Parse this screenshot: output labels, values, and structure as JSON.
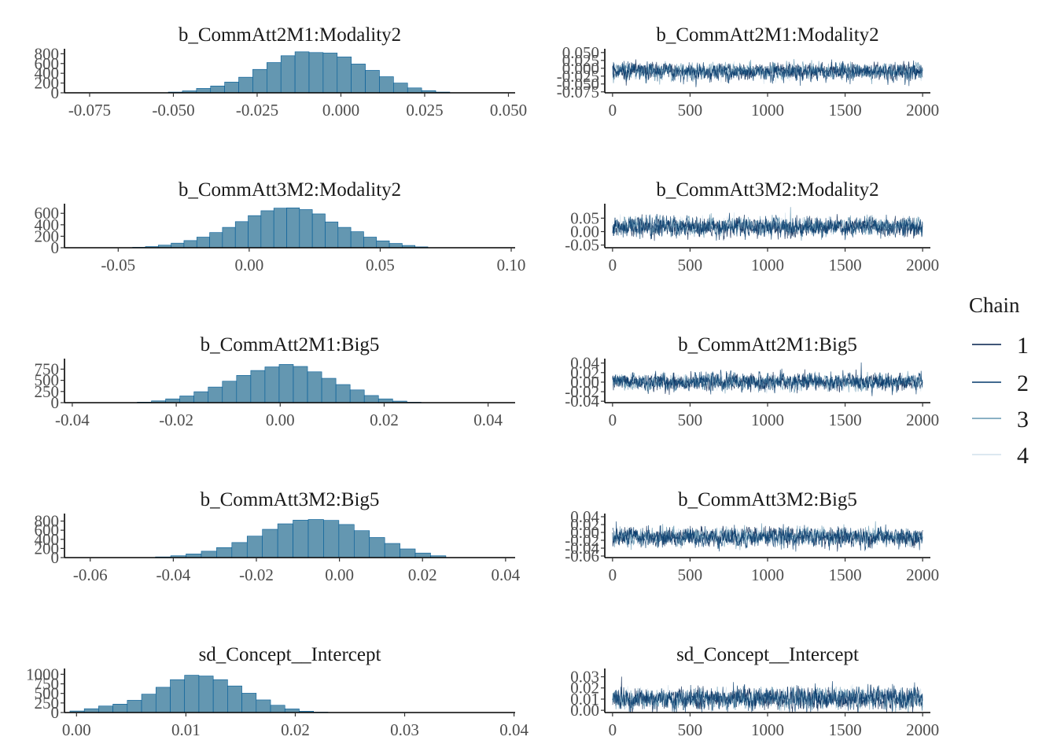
{
  "colors": {
    "hist_fill": "#6497b1",
    "hist_stroke": "#005b96",
    "chain_colors": [
      "#011f4b",
      "#03396c",
      "#6497b1",
      "#d1e1ec"
    ]
  },
  "legend": {
    "title": "Chain",
    "items": [
      "1",
      "2",
      "3",
      "4"
    ]
  },
  "chart_data": [
    {
      "type": "bar",
      "title": "b_CommAtt2M1:Modality2",
      "xticks": [
        "-0.075",
        "-0.050",
        "-0.025",
        "0.000",
        "0.025",
        "0.050"
      ],
      "xtick_values": [
        -0.075,
        -0.05,
        -0.025,
        0.0,
        0.025,
        0.05
      ],
      "xlim": [
        -0.0825,
        0.052
      ],
      "yticks": [
        "0",
        "200",
        "400",
        "600",
        "800"
      ],
      "ytick_values": [
        0,
        200,
        400,
        600,
        800
      ],
      "ylim": [
        0,
        870
      ],
      "bin_width": 0.0042,
      "bins_start": [
        -0.0515,
        -0.0473,
        -0.0431,
        -0.0389,
        -0.0347,
        -0.0305,
        -0.0263,
        -0.0221,
        -0.0179,
        -0.0137,
        -0.0095,
        -0.0053,
        -0.0011,
        0.0031,
        0.0073,
        0.0115,
        0.0157,
        0.0199,
        0.0241,
        0.0283
      ],
      "counts": [
        15,
        40,
        90,
        140,
        220,
        320,
        480,
        620,
        760,
        840,
        825,
        815,
        735,
        590,
        460,
        330,
        200,
        100,
        45,
        15
      ]
    },
    {
      "type": "line",
      "title": "b_CommAtt2M1:Modality2",
      "xticks": [
        "0",
        "500",
        "1000",
        "1500",
        "2000"
      ],
      "xtick_values": [
        0,
        500,
        1000,
        1500,
        2000
      ],
      "xlim": [
        -50,
        2050
      ],
      "yticks": [
        "-0.075",
        "-0.050",
        "-0.025",
        "0.000",
        "0.025",
        "0.050"
      ],
      "ytick_values": [
        -0.075,
        -0.05,
        -0.025,
        0.0,
        0.025,
        0.05
      ],
      "ylim": [
        -0.078,
        0.057
      ],
      "iterations": 2000,
      "chains": [
        {
          "name": "1",
          "mean": -0.009,
          "sd": 0.012
        },
        {
          "name": "2",
          "mean": -0.012,
          "sd": 0.014
        },
        {
          "name": "3",
          "mean": -0.008,
          "sd": 0.012
        },
        {
          "name": "4",
          "mean": -0.011,
          "sd": 0.011
        }
      ]
    },
    {
      "type": "bar",
      "title": "b_CommAtt3M2:Modality2",
      "xticks": [
        "-0.05",
        "0.00",
        "0.05",
        "0.10"
      ],
      "xtick_values": [
        -0.05,
        0.0,
        0.05,
        0.1
      ],
      "xlim": [
        -0.0705,
        0.1015
      ],
      "yticks": [
        "0",
        "200",
        "400",
        "600"
      ],
      "ytick_values": [
        0,
        200,
        400,
        600
      ],
      "ylim": [
        0,
        740
      ],
      "bin_width": 0.0049,
      "bins_start": [
        -0.0445,
        -0.0396,
        -0.0347,
        -0.0298,
        -0.0249,
        -0.02,
        -0.0151,
        -0.0102,
        -0.0053,
        -0.0004,
        0.0045,
        0.0094,
        0.0143,
        0.0192,
        0.0241,
        0.029,
        0.0339,
        0.0388,
        0.0437,
        0.0486,
        0.0535,
        0.0584,
        0.0633
      ],
      "counts": [
        8,
        20,
        45,
        80,
        125,
        185,
        265,
        355,
        455,
        560,
        645,
        690,
        695,
        665,
        590,
        450,
        355,
        280,
        185,
        120,
        75,
        40,
        15
      ]
    },
    {
      "type": "line",
      "title": "b_CommAtt3M2:Modality2",
      "xticks": [
        "0",
        "500",
        "1000",
        "1500",
        "2000"
      ],
      "xtick_values": [
        0,
        500,
        1000,
        1500,
        2000
      ],
      "xlim": [
        -50,
        2050
      ],
      "yticks": [
        "-0.05",
        "0.00",
        "0.05"
      ],
      "ytick_values": [
        -0.05,
        0.0,
        0.05
      ],
      "ylim": [
        -0.06,
        0.098
      ],
      "iterations": 2000,
      "chains": [
        {
          "name": "1",
          "mean": 0.016,
          "sd": 0.017
        },
        {
          "name": "2",
          "mean": 0.018,
          "sd": 0.018
        },
        {
          "name": "3",
          "mean": 0.02,
          "sd": 0.016
        },
        {
          "name": "4",
          "mean": 0.019,
          "sd": 0.015
        }
      ]
    },
    {
      "type": "bar",
      "title": "b_CommAtt2M1:Big5",
      "xticks": [
        "-0.04",
        "-0.02",
        "0.00",
        "0.02",
        "0.04"
      ],
      "xtick_values": [
        -0.04,
        -0.02,
        0.0,
        0.02,
        0.04
      ],
      "xlim": [
        -0.0415,
        0.0452
      ],
      "yticks": [
        "0",
        "250",
        "500",
        "750"
      ],
      "ytick_values": [
        0,
        250,
        500,
        750
      ],
      "ylim": [
        0,
        950
      ],
      "bin_width": 0.00273,
      "bins_start": [
        -0.0275,
        -0.02477,
        -0.02204,
        -0.01931,
        -0.01658,
        -0.01385,
        -0.01112,
        -0.00839,
        -0.00566,
        -0.00293,
        -0.0002,
        0.00253,
        0.00526,
        0.00799,
        0.01072,
        0.01345,
        0.01618,
        0.01891,
        0.02164,
        0.02437
      ],
      "counts": [
        12,
        40,
        85,
        150,
        245,
        350,
        480,
        610,
        720,
        800,
        855,
        810,
        690,
        545,
        405,
        285,
        160,
        85,
        35,
        10
      ]
    },
    {
      "type": "line",
      "title": "b_CommAtt2M1:Big5",
      "xticks": [
        "0",
        "500",
        "1000",
        "1500",
        "2000"
      ],
      "xtick_values": [
        0,
        500,
        1000,
        1500,
        2000
      ],
      "xlim": [
        -50,
        2050
      ],
      "yticks": [
        "-0.04",
        "-0.02",
        "0.00",
        "0.02",
        "0.04"
      ],
      "ytick_values": [
        -0.04,
        -0.02,
        0.0,
        0.02,
        0.04
      ],
      "ylim": [
        -0.043,
        0.046
      ],
      "iterations": 2000,
      "chains": [
        {
          "name": "1",
          "mean": -0.001,
          "sd": 0.008
        },
        {
          "name": "2",
          "mean": 0.001,
          "sd": 0.009
        },
        {
          "name": "3",
          "mean": 0.0,
          "sd": 0.008
        },
        {
          "name": "4",
          "mean": 0.0,
          "sd": 0.007
        }
      ]
    },
    {
      "type": "bar",
      "title": "b_CommAtt3M2:Big5",
      "xticks": [
        "-0.06",
        "-0.04",
        "-0.02",
        "0.00",
        "0.02",
        "0.04"
      ],
      "xtick_values": [
        -0.06,
        -0.04,
        -0.02,
        0.0,
        0.02,
        0.04
      ],
      "xlim": [
        -0.0662,
        0.0423
      ],
      "yticks": [
        "0",
        "200",
        "400",
        "600",
        "800"
      ],
      "ytick_values": [
        0,
        200,
        400,
        600,
        800
      ],
      "ylim": [
        0,
        930
      ],
      "bin_width": 0.00368,
      "bins_start": [
        -0.0443,
        -0.04062,
        -0.03694,
        -0.03326,
        -0.02958,
        -0.0259,
        -0.02222,
        -0.01854,
        -0.01486,
        -0.01118,
        -0.0075,
        -0.00382,
        -0.00014,
        0.00354,
        0.00722,
        0.0109,
        0.01458,
        0.01826,
        0.02194
      ],
      "counts": [
        15,
        40,
        80,
        140,
        220,
        330,
        470,
        620,
        740,
        820,
        835,
        815,
        725,
        590,
        440,
        310,
        190,
        100,
        40
      ]
    },
    {
      "type": "line",
      "title": "b_CommAtt3M2:Big5",
      "xticks": [
        "0",
        "500",
        "1000",
        "1500",
        "2000"
      ],
      "xtick_values": [
        0,
        500,
        1000,
        1500,
        2000
      ],
      "xlim": [
        -50,
        2050
      ],
      "yticks": [
        "-0.06",
        "-0.04",
        "-0.02",
        "0.00",
        "0.02",
        "0.04"
      ],
      "ytick_values": [
        -0.06,
        -0.04,
        -0.02,
        0.0,
        0.02,
        0.04
      ],
      "ylim": [
        -0.064,
        0.044
      ],
      "iterations": 2000,
      "chains": [
        {
          "name": "1",
          "mean": -0.011,
          "sd": 0.011
        },
        {
          "name": "2",
          "mean": -0.013,
          "sd": 0.012
        },
        {
          "name": "3",
          "mean": -0.01,
          "sd": 0.011
        },
        {
          "name": "4",
          "mean": -0.012,
          "sd": 0.01
        }
      ]
    },
    {
      "type": "bar",
      "title": "sd_Concept__Intercept",
      "xticks": [
        "0.00",
        "0.01",
        "0.02",
        "0.03",
        "0.04"
      ],
      "xtick_values": [
        0.0,
        0.01,
        0.02,
        0.03,
        0.04
      ],
      "xlim": [
        -0.0011,
        0.0401
      ],
      "yticks": [
        "0",
        "250",
        "500",
        "750",
        "1000"
      ],
      "ytick_values": [
        0,
        250,
        500,
        750,
        1000
      ],
      "ylim": [
        0,
        1110
      ],
      "bin_width": 0.00131,
      "bins_start": [
        -0.0006,
        0.00071,
        0.00202,
        0.00333,
        0.00464,
        0.00595,
        0.00726,
        0.00857,
        0.00988,
        0.01119,
        0.0125,
        0.01381,
        0.01512,
        0.01643,
        0.01774,
        0.01905,
        0.02036,
        0.02167
      ],
      "counts": [
        40,
        100,
        170,
        220,
        320,
        480,
        660,
        860,
        975,
        955,
        860,
        695,
        505,
        330,
        190,
        95,
        35,
        10
      ]
    },
    {
      "type": "line",
      "title": "sd_Concept__Intercept",
      "xticks": [
        "0",
        "500",
        "1000",
        "1500",
        "2000"
      ],
      "xtick_values": [
        0,
        500,
        1000,
        1500,
        2000
      ],
      "xlim": [
        -50,
        2050
      ],
      "yticks": [
        "0.00",
        "0.01",
        "0.02",
        "0.03"
      ],
      "ytick_values": [
        0.0,
        0.01,
        0.02,
        0.03
      ],
      "ylim": [
        -0.002,
        0.036
      ],
      "iterations": 2000,
      "chains": [
        {
          "name": "1",
          "mean": 0.01,
          "sd": 0.0045
        },
        {
          "name": "2",
          "mean": 0.011,
          "sd": 0.005
        },
        {
          "name": "3",
          "mean": 0.01,
          "sd": 0.0045
        },
        {
          "name": "4",
          "mean": 0.011,
          "sd": 0.004
        }
      ]
    }
  ]
}
